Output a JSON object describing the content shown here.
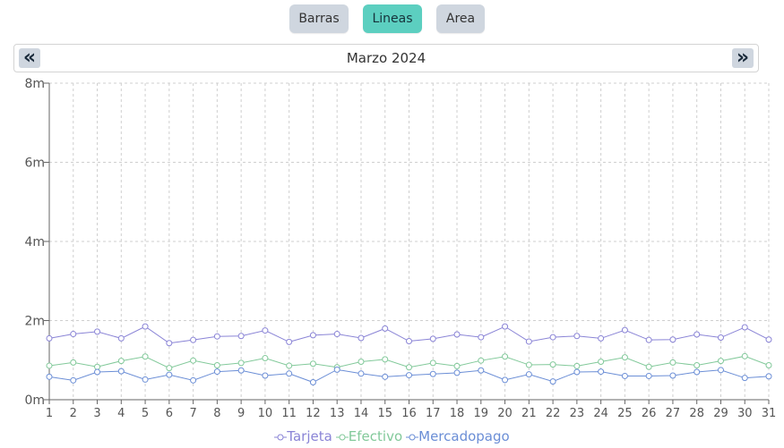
{
  "tabs": [
    {
      "label": "Barras",
      "active": false
    },
    {
      "label": "Lineas",
      "active": true
    },
    {
      "label": "Area",
      "active": false
    }
  ],
  "month_nav": {
    "label": "Marzo 2024",
    "prev_icon": "double-chevron-left-icon",
    "next_icon": "double-chevron-right-icon"
  },
  "chart_data": {
    "type": "line",
    "x": [
      1,
      2,
      3,
      4,
      5,
      6,
      7,
      8,
      9,
      10,
      11,
      12,
      13,
      14,
      15,
      16,
      17,
      18,
      19,
      20,
      21,
      22,
      23,
      24,
      25,
      26,
      27,
      28,
      29,
      30,
      31
    ],
    "ylim": [
      0,
      8000000
    ],
    "yticks": [
      "0m",
      "2m",
      "4m",
      "6m",
      "8m"
    ],
    "grid": true,
    "legend_position": "bottom",
    "series": [
      {
        "name": "Tarjeta",
        "color": "#8a84d6",
        "values": [
          1550000,
          1660000,
          1720000,
          1550000,
          1850000,
          1430000,
          1510000,
          1600000,
          1610000,
          1750000,
          1460000,
          1630000,
          1660000,
          1560000,
          1800000,
          1480000,
          1540000,
          1650000,
          1580000,
          1850000,
          1470000,
          1580000,
          1610000,
          1550000,
          1760000,
          1510000,
          1520000,
          1650000,
          1570000,
          1830000,
          1520000
        ]
      },
      {
        "name": "Efectivo",
        "color": "#82c99a",
        "values": [
          860000,
          940000,
          830000,
          980000,
          1090000,
          800000,
          990000,
          870000,
          930000,
          1050000,
          860000,
          910000,
          820000,
          960000,
          1020000,
          820000,
          930000,
          850000,
          990000,
          1090000,
          880000,
          890000,
          850000,
          960000,
          1070000,
          830000,
          940000,
          870000,
          980000,
          1100000,
          870000
        ]
      },
      {
        "name": "Mercadopago",
        "color": "#6b8ed6",
        "values": [
          580000,
          490000,
          700000,
          720000,
          510000,
          630000,
          490000,
          710000,
          740000,
          610000,
          660000,
          440000,
          760000,
          660000,
          580000,
          620000,
          650000,
          680000,
          740000,
          500000,
          640000,
          460000,
          700000,
          710000,
          600000,
          600000,
          610000,
          700000,
          750000,
          550000,
          590000
        ]
      }
    ]
  }
}
